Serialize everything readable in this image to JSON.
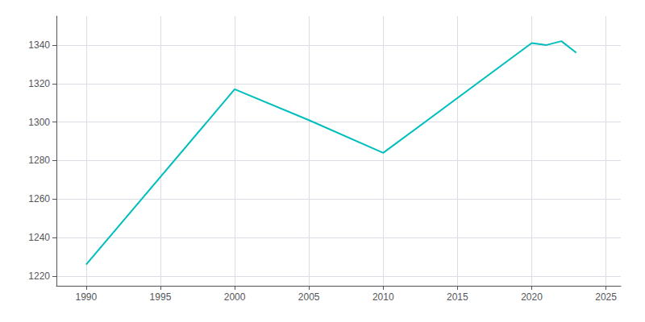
{
  "chart_data": {
    "type": "line",
    "x": [
      1990,
      2000,
      2005,
      2010,
      2020,
      2021,
      2022,
      2023
    ],
    "values": [
      1226,
      1317,
      1301,
      1284,
      1341,
      1340,
      1342,
      1336
    ],
    "color": "#00BEBE",
    "xlim": [
      1988,
      2026
    ],
    "ylim": [
      1215,
      1355
    ],
    "xticks": [
      1990,
      1995,
      2000,
      2005,
      2010,
      2015,
      2020,
      2025
    ],
    "yticks": [
      1220,
      1240,
      1260,
      1280,
      1300,
      1320,
      1340
    ],
    "grid": true
  }
}
